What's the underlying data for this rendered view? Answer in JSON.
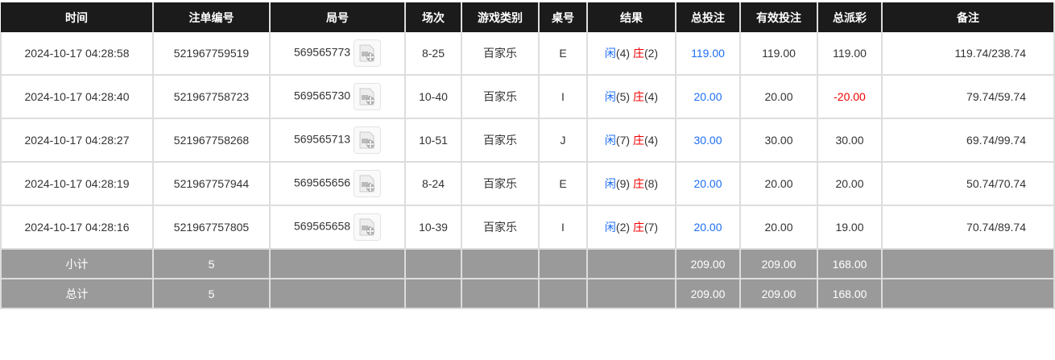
{
  "headers": [
    "时间",
    "注单编号",
    "局号",
    "场次",
    "游戏类别",
    "桌号",
    "结果",
    "总投注",
    "有效投注",
    "总派彩",
    "备注"
  ],
  "rows": [
    {
      "time": "2024-10-17 04:28:58",
      "bet_id": "521967759519",
      "round": "569565773",
      "session": "8-25",
      "game": "百家乐",
      "table": "E",
      "player": "闲",
      "player_pts": "(4)",
      "banker": "庄",
      "banker_pts": "(2)",
      "total_bet": "119.00",
      "valid_bet": "119.00",
      "payout": "119.00",
      "payout_negative": false,
      "remark": "119.74/238.74"
    },
    {
      "time": "2024-10-17 04:28:40",
      "bet_id": "521967758723",
      "round": "569565730",
      "session": "10-40",
      "game": "百家乐",
      "table": "I",
      "player": "闲",
      "player_pts": "(5)",
      "banker": "庄",
      "banker_pts": "(4)",
      "total_bet": "20.00",
      "valid_bet": "20.00",
      "payout": "-20.00",
      "payout_negative": true,
      "remark": "79.74/59.74"
    },
    {
      "time": "2024-10-17 04:28:27",
      "bet_id": "521967758268",
      "round": "569565713",
      "session": "10-51",
      "game": "百家乐",
      "table": "J",
      "player": "闲",
      "player_pts": "(7)",
      "banker": "庄",
      "banker_pts": "(4)",
      "total_bet": "30.00",
      "valid_bet": "30.00",
      "payout": "30.00",
      "payout_negative": false,
      "remark": "69.74/99.74"
    },
    {
      "time": "2024-10-17 04:28:19",
      "bet_id": "521967757944",
      "round": "569565656",
      "session": "8-24",
      "game": "百家乐",
      "table": "E",
      "player": "闲",
      "player_pts": "(9)",
      "banker": "庄",
      "banker_pts": "(8)",
      "total_bet": "20.00",
      "valid_bet": "20.00",
      "payout": "20.00",
      "payout_negative": false,
      "remark": "50.74/70.74"
    },
    {
      "time": "2024-10-17 04:28:16",
      "bet_id": "521967757805",
      "round": "569565658",
      "session": "10-39",
      "game": "百家乐",
      "table": "I",
      "player": "闲",
      "player_pts": "(2)",
      "banker": "庄",
      "banker_pts": "(7)",
      "total_bet": "20.00",
      "valid_bet": "20.00",
      "payout": "19.00",
      "payout_negative": false,
      "remark": "70.74/89.74"
    }
  ],
  "summary": [
    {
      "label": "小计",
      "count": "5",
      "total_bet": "209.00",
      "valid_bet": "209.00",
      "payout": "168.00"
    },
    {
      "label": "总计",
      "count": "5",
      "total_bet": "209.00",
      "valid_bet": "209.00",
      "payout": "168.00"
    }
  ],
  "colors": {
    "player": "#1e6ef5",
    "banker": "#f00000",
    "header_bg": "#1b1b1b",
    "summary_bg": "#9a9a9a"
  },
  "icons": {
    "video": "video-replay-icon"
  }
}
